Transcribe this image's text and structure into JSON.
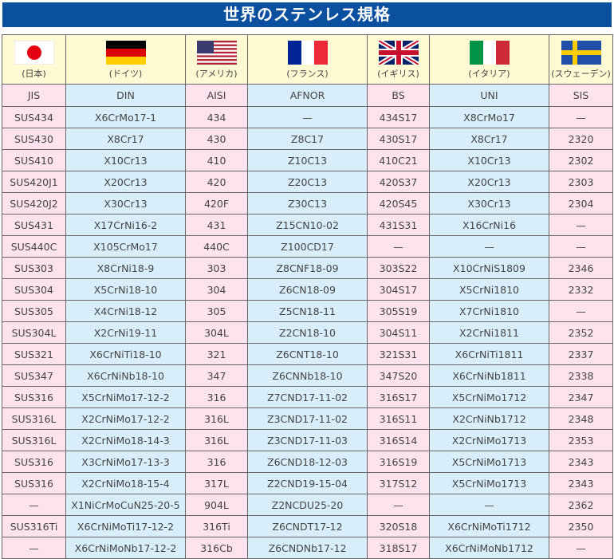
{
  "title": "世界のステンレス規格",
  "countries": [
    {
      "name": "(日本)",
      "flag": "japan-flag-icon",
      "standard": "JIS"
    },
    {
      "name": "(ドイツ)",
      "flag": "germany-flag-icon",
      "standard": "DIN"
    },
    {
      "name": "(アメリカ)",
      "flag": "usa-flag-icon",
      "standard": "AISI"
    },
    {
      "name": "(フランス)",
      "flag": "france-flag-icon",
      "standard": "AFNOR"
    },
    {
      "name": "(イギリス)",
      "flag": "uk-flag-icon",
      "standard": "BS"
    },
    {
      "name": "(イタリア)",
      "flag": "italy-flag-icon",
      "standard": "UNI"
    },
    {
      "name": "(スウェーデン)",
      "flag": "sweden-flag-icon",
      "standard": "SIS"
    }
  ],
  "rows": [
    [
      "SUS434",
      "X6CrMo17-1",
      "434",
      "—",
      "434S17",
      "X8CrMo17",
      "—"
    ],
    [
      "SUS430",
      "X8Cr17",
      "430",
      "Z8C17",
      "430S17",
      "X8Cr17",
      "2320"
    ],
    [
      "SUS410",
      "X10Cr13",
      "410",
      "Z10C13",
      "410C21",
      "X10Cr13",
      "2302"
    ],
    [
      "SUS420J1",
      "X20Cr13",
      "420",
      "Z20C13",
      "420S37",
      "X20Cr13",
      "2303"
    ],
    [
      "SUS420J2",
      "X30Cr13",
      "420F",
      "Z30C13",
      "420S45",
      "X30Cr13",
      "2304"
    ],
    [
      "SUS431",
      "X17CrNi16-2",
      "431",
      "Z15CN10-02",
      "431S31",
      "X16CrNi16",
      "—"
    ],
    [
      "SUS440C",
      "X105CrMo17",
      "440C",
      "Z100CD17",
      "—",
      "—",
      "—"
    ],
    [
      "SUS303",
      "X8CrNi18-9",
      "303",
      "Z8CNF18-09",
      "303S22",
      "X10CrNiS1809",
      "2346"
    ],
    [
      "SUS304",
      "X5CrNi18-10",
      "304",
      "Z6CN18-09",
      "304S17",
      "X5CrNi1810",
      "2332"
    ],
    [
      "SUS305",
      "X4CrNi18-12",
      "305",
      "Z5CN18-11",
      "305S19",
      "X7CrNi1810",
      "—"
    ],
    [
      "SUS304L",
      "X2CrNi19-11",
      "304L",
      "Z2CN18-10",
      "304S11",
      "X2CrNi1811",
      "2352"
    ],
    [
      "SUS321",
      "X6CrNiTi18-10",
      "321",
      "Z6CNT18-10",
      "321S31",
      "X6CrNiTi1811",
      "2337"
    ],
    [
      "SUS347",
      "X6CrNiNb18-10",
      "347",
      "Z6CNNb18-10",
      "347S20",
      "X6CrNiNb1811",
      "2338"
    ],
    [
      "SUS316",
      "X5CrNiMo17-12-2",
      "316",
      "Z7CND17-11-02",
      "316S17",
      "X5CrNiMo1712",
      "2347"
    ],
    [
      "SUS316L",
      "X2CrNiMo17-12-2",
      "316L",
      "Z3CND17-11-02",
      "316S11",
      "X2CrNiNb1712",
      "2348"
    ],
    [
      "SUS316L",
      "X2CrNiMo18-14-3",
      "316L",
      "Z3CND17-11-03",
      "316S14",
      "X2CrNiMo1713",
      "2353"
    ],
    [
      "SUS316",
      "X3CrNiMo17-13-3",
      "316",
      "Z6CND18-12-03",
      "316S19",
      "X5CrNiMo1713",
      "2343"
    ],
    [
      "SUS316",
      "X2CrNiMo18-15-4",
      "317L",
      "Z2CND19-15-04",
      "317S12",
      "X5CrNiMo1713",
      "2343"
    ],
    [
      "—",
      "X1NiCrMoCuN25-20-5",
      "904L",
      "Z2NCDU25-20",
      "—",
      "—",
      "2362"
    ],
    [
      "SUS316Ti",
      "X6CrNiMoTi17-12-2",
      "316Ti",
      "Z6CNDT17-12",
      "320S18",
      "X6CrNiMoTi1712",
      "2350"
    ],
    [
      "—",
      "X6CrNiMoNb17-12-2",
      "316Cb",
      "Z6CNDNb17-12",
      "318S17",
      "X6CrNiMoNb1712",
      "—"
    ]
  ]
}
